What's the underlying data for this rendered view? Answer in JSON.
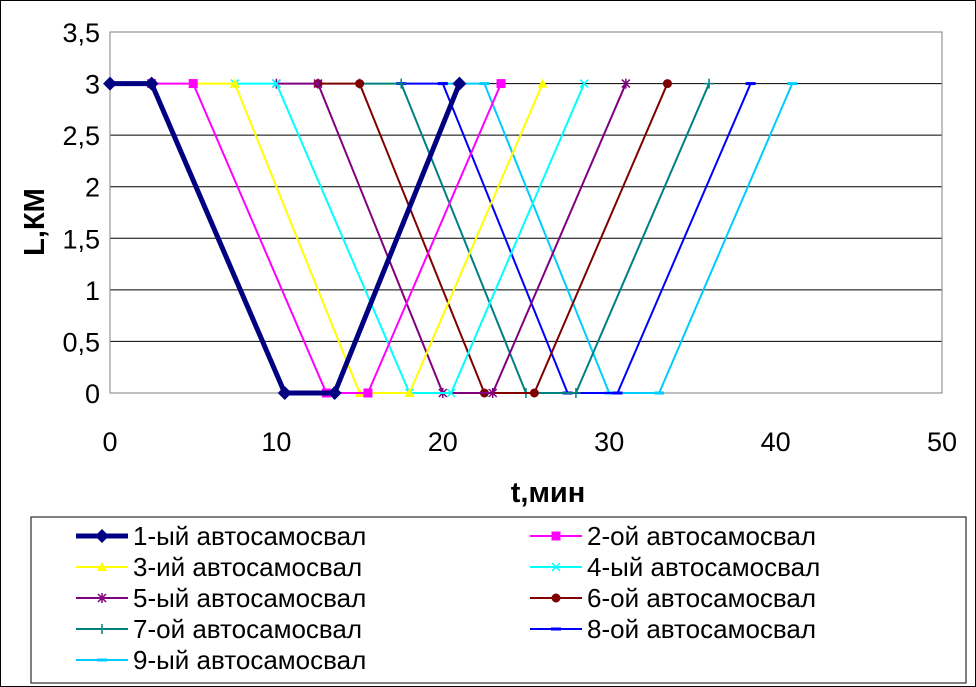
{
  "chart_data": {
    "type": "line",
    "xlabel": "t,мин",
    "ylabel": "L,КМ",
    "xlim": [
      0,
      50
    ],
    "ylim": [
      0,
      3.5
    ],
    "x_ticks": [
      "0",
      "10",
      "20",
      "30",
      "40",
      "50"
    ],
    "y_ticks": [
      "0",
      "0,5",
      "1",
      "1,5",
      "2",
      "2,5",
      "3",
      "3,5"
    ],
    "grid": "horizontal",
    "legend_position": "bottom",
    "series": [
      {
        "name": "1-ый автосамосвал",
        "color": "#000080",
        "marker": "diamond",
        "x": [
          0,
          2.5,
          10.5,
          13.5,
          21
        ],
        "y": [
          3,
          3,
          0,
          0,
          3
        ]
      },
      {
        "name": "2-ой автосамосвал",
        "color": "#FF00FF",
        "marker": "square",
        "x": [
          2.5,
          5,
          13,
          15.5,
          23.5
        ],
        "y": [
          3,
          3,
          0,
          0,
          3
        ]
      },
      {
        "name": "3-ий автосамосвал",
        "color": "#FFFF00",
        "marker": "triangle",
        "x": [
          5,
          7.5,
          15,
          18,
          26
        ],
        "y": [
          3,
          3,
          0,
          0,
          3
        ]
      },
      {
        "name": "4-ый автосамосвал",
        "color": "#00FFFF",
        "marker": "x",
        "x": [
          7.5,
          10,
          18,
          20.5,
          28.5
        ],
        "y": [
          3,
          3,
          0,
          0,
          3
        ]
      },
      {
        "name": "5-ый автосамосвал",
        "color": "#800080",
        "marker": "star",
        "x": [
          10,
          12.5,
          20,
          23,
          31
        ],
        "y": [
          3,
          3,
          0,
          0,
          3
        ]
      },
      {
        "name": "6-ой автосамосвал",
        "color": "#800000",
        "marker": "circle",
        "x": [
          12.5,
          15,
          22.5,
          25.5,
          33.5
        ],
        "y": [
          3,
          3,
          0,
          0,
          3
        ]
      },
      {
        "name": "7-ой автосамосвал",
        "color": "#008080",
        "marker": "plus",
        "x": [
          15,
          17.5,
          25,
          28,
          36
        ],
        "y": [
          3,
          3,
          0,
          0,
          3
        ]
      },
      {
        "name": "8-ой автосамосвал",
        "color": "#0000FF",
        "marker": "dash",
        "x": [
          17.5,
          20,
          27.5,
          30.5,
          38.5
        ],
        "y": [
          3,
          3,
          0,
          0,
          3
        ]
      },
      {
        "name": "9-ый автосамосвал",
        "color": "#00CCFF",
        "marker": "dash",
        "x": [
          20,
          22.5,
          30,
          33,
          41
        ],
        "y": [
          3,
          3,
          0,
          0,
          3
        ]
      }
    ]
  }
}
